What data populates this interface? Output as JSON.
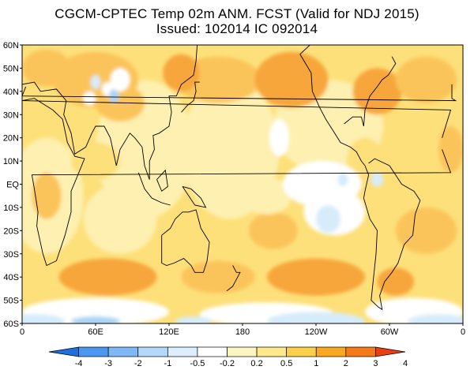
{
  "title_line1": "CGCM-CPTEC Temp 02m ANM. FCST  (Valid for NDJ 2015)",
  "title_line2": "Issued:  102014 IC 092014",
  "lat_labels": [
    "60N",
    "50N",
    "40N",
    "30N",
    "20N",
    "10N",
    "EQ",
    "10S",
    "20S",
    "30S",
    "40S",
    "50S",
    "60S"
  ],
  "lon_labels": [
    "0",
    "60E",
    "120E",
    "180",
    "120W",
    "60W",
    "0"
  ],
  "colorbar": {
    "colors": [
      "#1f6fe0",
      "#4b96f0",
      "#80b8f5",
      "#b2d8fa",
      "#ddeefc",
      "#ffffff",
      "#fdf5c0",
      "#fde88a",
      "#fccf4a",
      "#f9a821",
      "#f47a1a",
      "#ea3e12"
    ],
    "labels": [
      "-4",
      "-3",
      "-2",
      "-1",
      "-0.5",
      "-0.2",
      "0.2",
      "0.5",
      "1",
      "2",
      "3",
      "4"
    ]
  },
  "palette": {
    "weak_warm": "#fdf0b0",
    "warm": "#fde07a",
    "warmer": "#fbc45a",
    "warmest": "#f7a63a",
    "neutral": "#ffffff",
    "cool": "#d6ecfb",
    "cooler": "#a9d4f5",
    "coast": "#000000"
  }
}
